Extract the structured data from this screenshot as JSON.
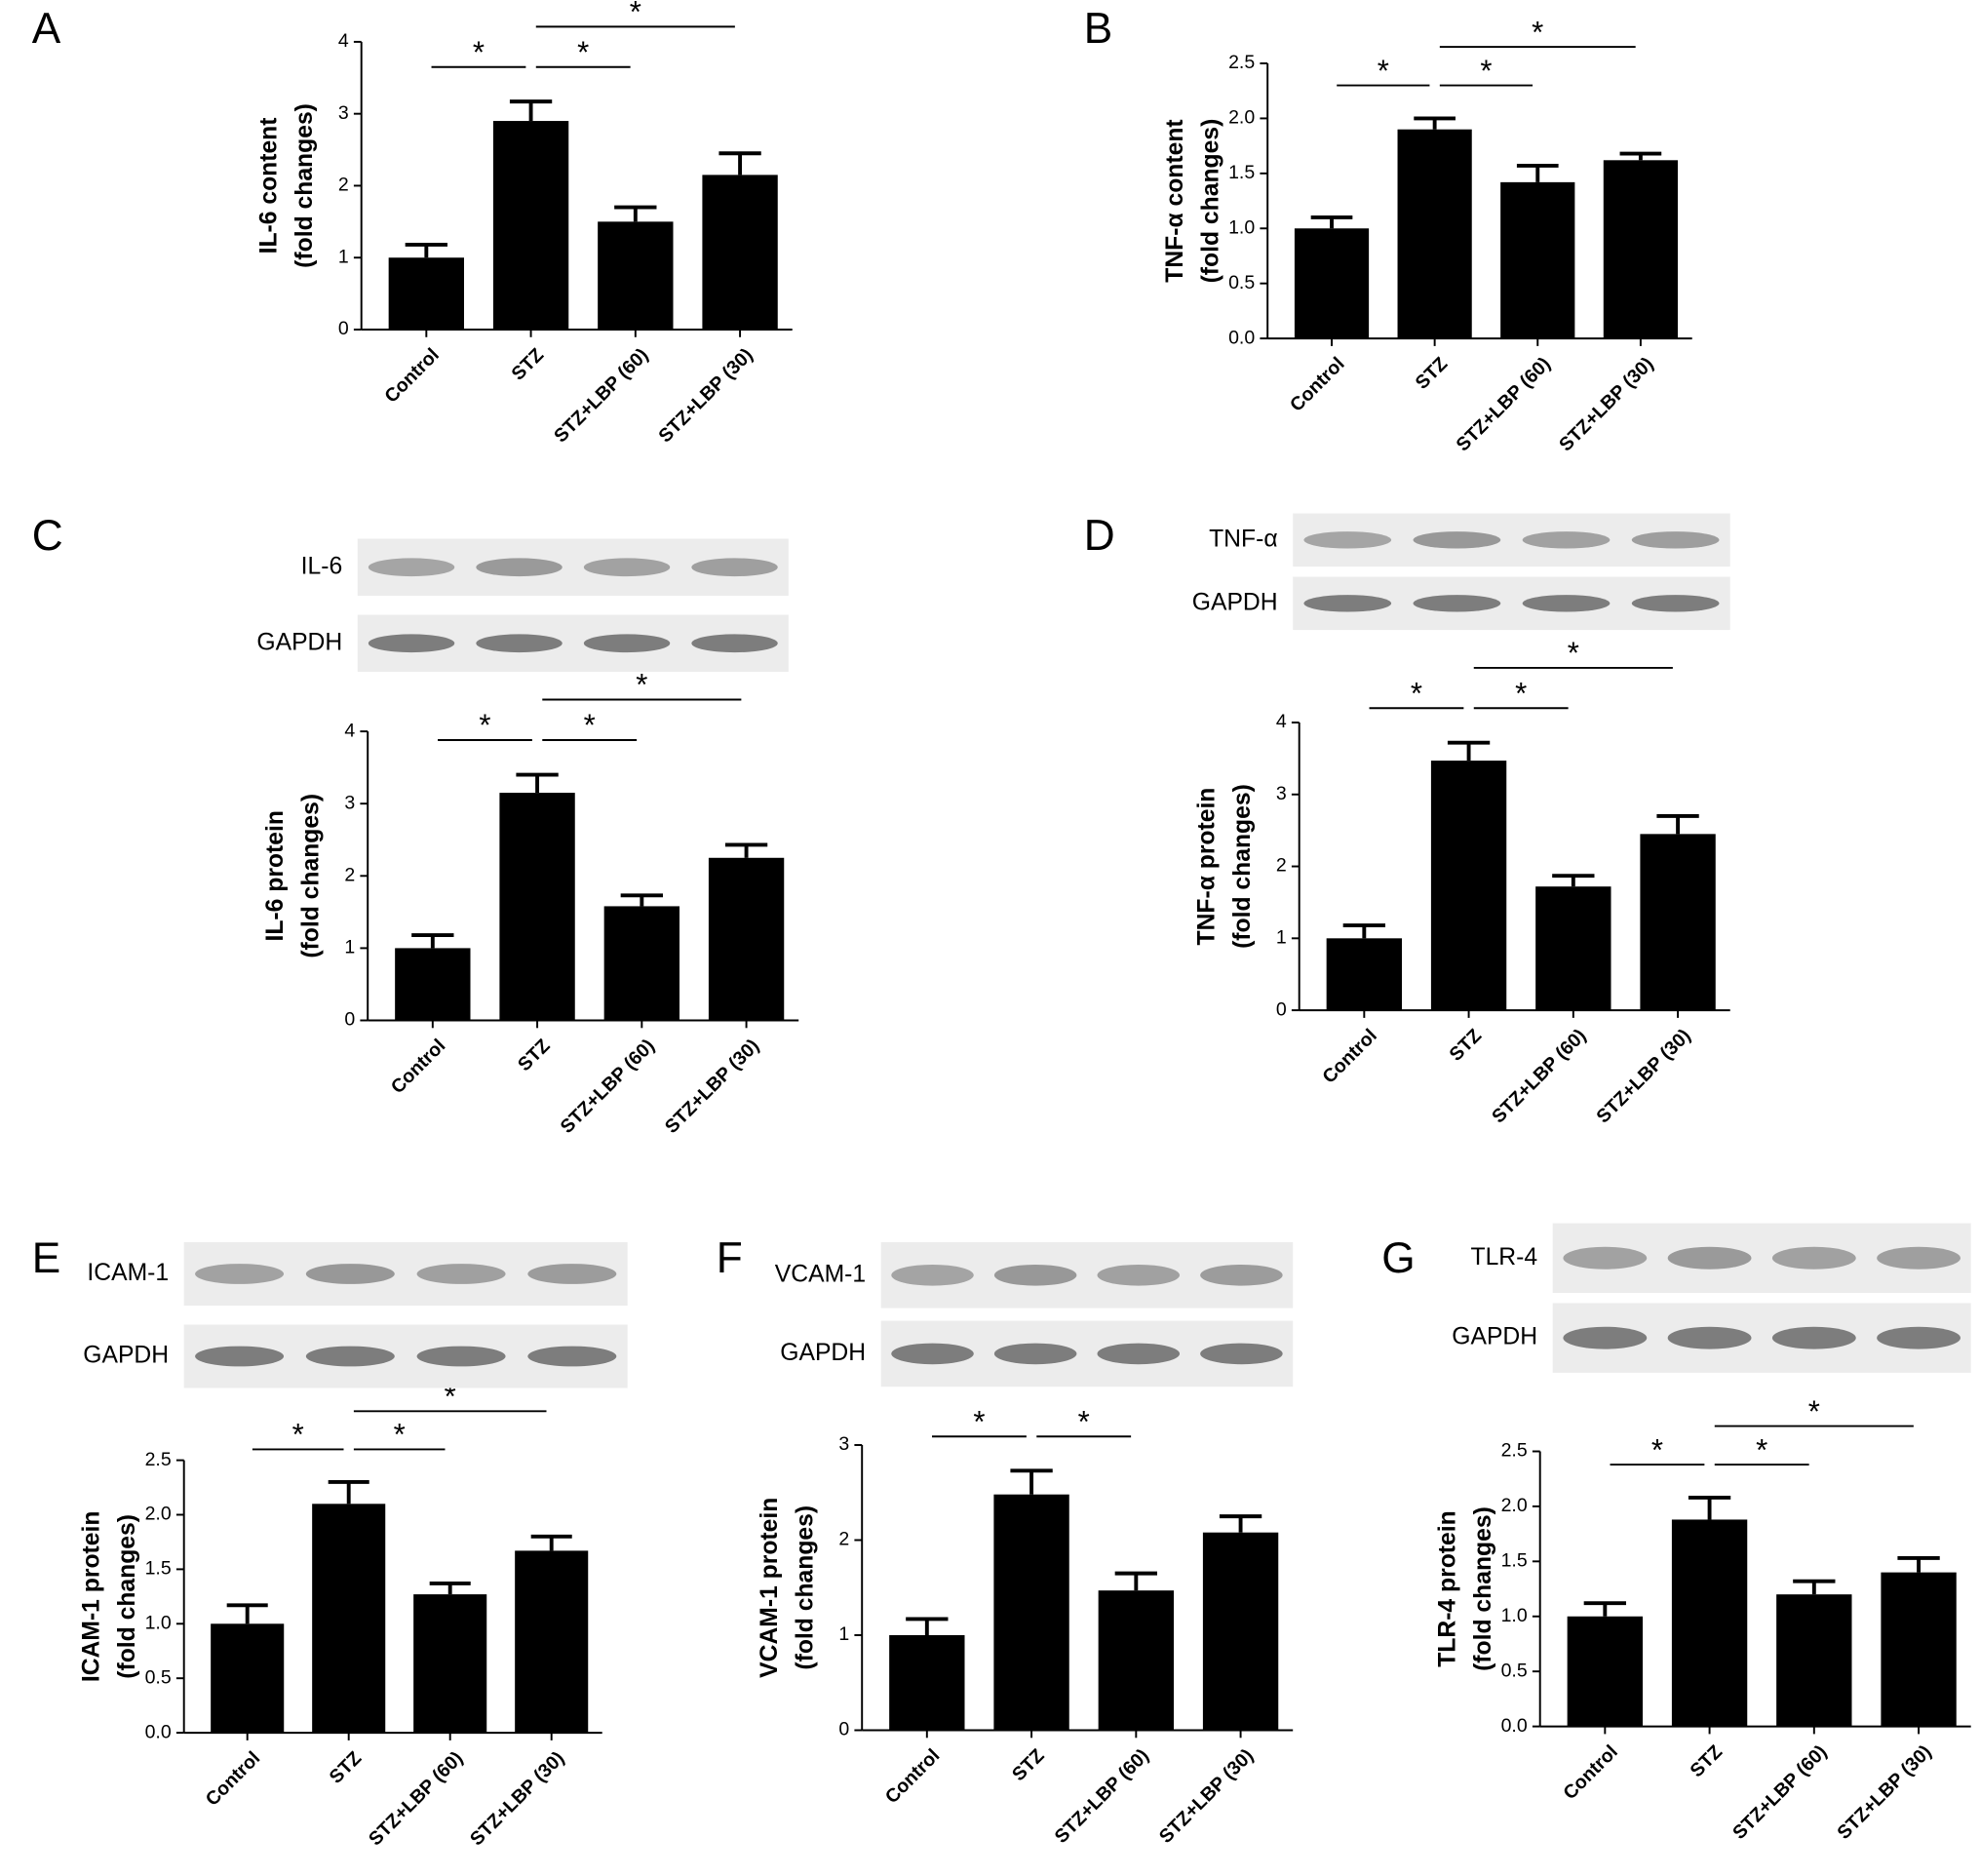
{
  "chart_data": [
    {
      "type": "bar",
      "panel": "A",
      "ylabel": [
        "IL-6 content",
        "(fold changes)"
      ],
      "blot_labels": [],
      "categories": [
        "Control",
        "STZ",
        "STZ+LBP (60)",
        "STZ+LBP (30)"
      ],
      "values": [
        1.0,
        2.9,
        1.5,
        2.15
      ],
      "errors": [
        0.18,
        0.27,
        0.2,
        0.3
      ],
      "color": "#000000",
      "ylim": [
        0,
        4
      ],
      "yticks": [
        0,
        1,
        2,
        3,
        4
      ],
      "comparisons": [
        {
          "groups": [
            0,
            1
          ],
          "label": "*"
        },
        {
          "groups": [
            1,
            2
          ],
          "label": "*"
        },
        {
          "groups": [
            1,
            3
          ],
          "label": "*"
        }
      ]
    },
    {
      "type": "bar",
      "panel": "B",
      "ylabel": [
        "TNF-α content",
        "(fold changes)"
      ],
      "blot_labels": [],
      "categories": [
        "Control",
        "STZ",
        "STZ+LBP (60)",
        "STZ+LBP (30)"
      ],
      "values": [
        1.0,
        1.9,
        1.42,
        1.62
      ],
      "errors": [
        0.1,
        0.1,
        0.15,
        0.06
      ],
      "color": "#000000",
      "ylim": [
        0,
        2.5
      ],
      "yticks": [
        {
          "value": 0,
          "label": "0.0"
        },
        0.5,
        {
          "value": 1,
          "label": "1.0"
        },
        1.5,
        {
          "value": 2,
          "label": "2.0"
        },
        2.5
      ],
      "comparisons": [
        {
          "groups": [
            0,
            1
          ],
          "label": "*"
        },
        {
          "groups": [
            1,
            2
          ],
          "label": "*"
        },
        {
          "groups": [
            1,
            3
          ],
          "label": "*"
        }
      ]
    },
    {
      "type": "bar",
      "panel": "C",
      "ylabel": [
        "IL-6 protein",
        "(fold changes)"
      ],
      "blot_labels": [
        "IL-6",
        "GAPDH"
      ],
      "categories": [
        "Control",
        "STZ",
        "STZ+LBP (60)",
        "STZ+LBP (30)"
      ],
      "values": [
        1.0,
        3.15,
        1.58,
        2.25
      ],
      "errors": [
        0.18,
        0.25,
        0.15,
        0.18
      ],
      "color": "#000000",
      "ylim": [
        0,
        4
      ],
      "yticks": [
        0,
        1,
        2,
        3,
        4
      ],
      "comparisons": [
        {
          "groups": [
            0,
            1
          ],
          "label": "*"
        },
        {
          "groups": [
            1,
            2
          ],
          "label": "*"
        },
        {
          "groups": [
            1,
            3
          ],
          "label": "*"
        }
      ]
    },
    {
      "type": "bar",
      "panel": "D",
      "ylabel": [
        "TNF-α protein",
        "(fold changes)"
      ],
      "blot_labels": [
        "TNF-α",
        "GAPDH"
      ],
      "categories": [
        "Control",
        "STZ",
        "STZ+LBP (60)",
        "STZ+LBP (30)"
      ],
      "values": [
        1.0,
        3.47,
        1.72,
        2.45
      ],
      "errors": [
        0.18,
        0.25,
        0.15,
        0.25
      ],
      "color": "#000000",
      "ylim": [
        0,
        4
      ],
      "yticks": [
        0,
        1,
        2,
        3,
        4
      ],
      "comparisons": [
        {
          "groups": [
            0,
            1
          ],
          "label": "*"
        },
        {
          "groups": [
            1,
            2
          ],
          "label": "*"
        },
        {
          "groups": [
            1,
            3
          ],
          "label": "*"
        }
      ]
    },
    {
      "type": "bar",
      "panel": "E",
      "ylabel": [
        "ICAM-1 protein",
        "(fold changes)"
      ],
      "blot_labels": [
        "ICAM-1",
        "GAPDH"
      ],
      "categories": [
        "Control",
        "STZ",
        "STZ+LBP (60)",
        "STZ+LBP (30)"
      ],
      "values": [
        1.0,
        2.1,
        1.27,
        1.67
      ],
      "errors": [
        0.17,
        0.2,
        0.1,
        0.13
      ],
      "color": "#000000",
      "ylim": [
        0,
        2.5
      ],
      "yticks": [
        {
          "value": 0,
          "label": "0.0"
        },
        0.5,
        {
          "value": 1,
          "label": "1.0"
        },
        1.5,
        {
          "value": 2,
          "label": "2.0"
        },
        2.5
      ],
      "comparisons": [
        {
          "groups": [
            0,
            1
          ],
          "label": "*"
        },
        {
          "groups": [
            1,
            2
          ],
          "label": "*"
        },
        {
          "groups": [
            1,
            3
          ],
          "label": "*"
        }
      ]
    },
    {
      "type": "bar",
      "panel": "F",
      "ylabel": [
        "VCAM-1 protein",
        "(fold changes)"
      ],
      "blot_labels": [
        "VCAM-1",
        "GAPDH"
      ],
      "categories": [
        "Control",
        "STZ",
        "STZ+LBP (60)",
        "STZ+LBP (30)"
      ],
      "values": [
        1.0,
        2.48,
        1.47,
        2.08
      ],
      "errors": [
        0.17,
        0.25,
        0.18,
        0.17
      ],
      "color": "#000000",
      "ylim": [
        0,
        3
      ],
      "yticks": [
        0,
        1,
        2,
        3
      ],
      "comparisons": [
        {
          "groups": [
            0,
            1
          ],
          "label": "*"
        },
        {
          "groups": [
            1,
            2
          ],
          "label": "*"
        }
      ]
    },
    {
      "type": "bar",
      "panel": "G",
      "ylabel": [
        "TLR-4 protein",
        "(fold changes)"
      ],
      "blot_labels": [
        "TLR-4",
        "GAPDH"
      ],
      "categories": [
        "Control",
        "STZ",
        "STZ+LBP (60)",
        "STZ+LBP (30)"
      ],
      "values": [
        1.0,
        1.88,
        1.2,
        1.4
      ],
      "errors": [
        0.12,
        0.2,
        0.12,
        0.13
      ],
      "color": "#000000",
      "ylim": [
        0,
        2.5
      ],
      "yticks": [
        {
          "value": 0,
          "label": "0.0"
        },
        0.5,
        {
          "value": 1,
          "label": "1.0"
        },
        1.5,
        {
          "value": 2,
          "label": "2.0"
        },
        2.5
      ],
      "comparisons": [
        {
          "groups": [
            0,
            1
          ],
          "label": "*"
        },
        {
          "groups": [
            1,
            2
          ],
          "label": "*"
        },
        {
          "groups": [
            1,
            3
          ],
          "label": "*"
        }
      ]
    }
  ]
}
